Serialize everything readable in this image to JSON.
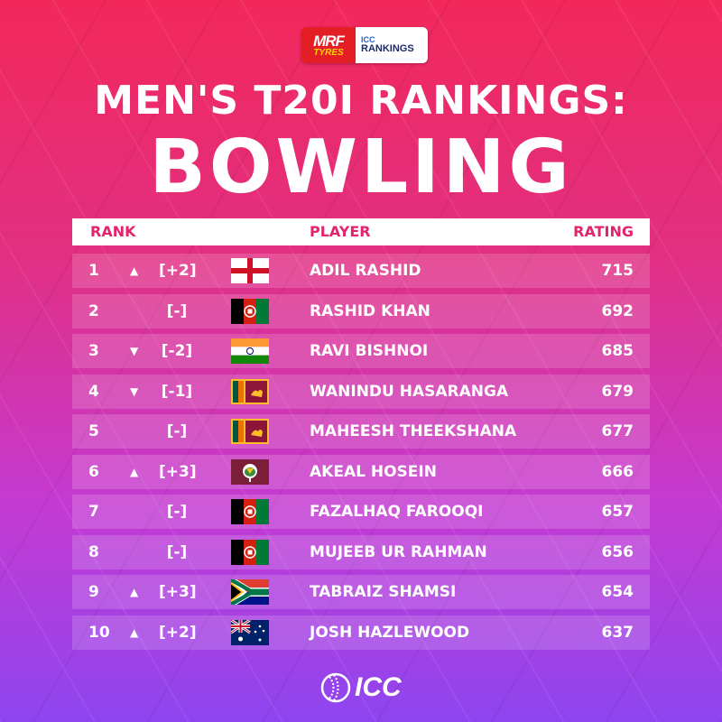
{
  "header": {
    "logo_mrf_top": "MRF",
    "logo_mrf_bottom": "TYRES",
    "logo_icc_top": "ICC",
    "logo_icc_bottom": "RANKINGS",
    "title_line1": "MEN'S T20I RANKINGS:",
    "title_line2": "BOWLING"
  },
  "table": {
    "columns": {
      "rank": "RANK",
      "player": "PLAYER",
      "rating": "RATING"
    },
    "rows": [
      {
        "rank": "1",
        "trend": "up",
        "arrow": "▲",
        "movement": "[+2]",
        "flag": "england-flag-icon",
        "player": "ADIL RASHID",
        "rating": "715"
      },
      {
        "rank": "2",
        "trend": "none",
        "arrow": "",
        "movement": "[-]",
        "flag": "afghanistan-flag-icon",
        "player": "RASHID KHAN",
        "rating": "692"
      },
      {
        "rank": "3",
        "trend": "down",
        "arrow": "▼",
        "movement": "[-2]",
        "flag": "india-flag-icon",
        "player": "RAVI BISHNOI",
        "rating": "685"
      },
      {
        "rank": "4",
        "trend": "down",
        "arrow": "▼",
        "movement": "[-1]",
        "flag": "sri-lanka-flag-icon",
        "player": "WANINDU HASARANGA",
        "rating": "679"
      },
      {
        "rank": "5",
        "trend": "none",
        "arrow": "",
        "movement": "[-]",
        "flag": "sri-lanka-flag-icon",
        "player": "MAHEESH THEEKSHANA",
        "rating": "677"
      },
      {
        "rank": "6",
        "trend": "up",
        "arrow": "▲",
        "movement": "[+3]",
        "flag": "west-indies-flag-icon",
        "player": "AKEAL HOSEIN",
        "rating": "666"
      },
      {
        "rank": "7",
        "trend": "none",
        "arrow": "",
        "movement": "[-]",
        "flag": "afghanistan-flag-icon",
        "player": "FAZALHAQ FAROOQI",
        "rating": "657"
      },
      {
        "rank": "8",
        "trend": "none",
        "arrow": "",
        "movement": "[-]",
        "flag": "afghanistan-flag-icon",
        "player": "MUJEEB UR RAHMAN",
        "rating": "656"
      },
      {
        "rank": "9",
        "trend": "up",
        "arrow": "▲",
        "movement": "[+3]",
        "flag": "south-africa-flag-icon",
        "player": "TABRAIZ SHAMSI",
        "rating": "654"
      },
      {
        "rank": "10",
        "trend": "up",
        "arrow": "▲",
        "movement": "[+2]",
        "flag": "australia-flag-icon",
        "player": "JOSH HAZLEWOOD",
        "rating": "637"
      }
    ]
  },
  "footer": {
    "logo_text": "ICC"
  },
  "colors": {
    "accent": "#e0246e",
    "gradient_top": "#f2285a",
    "gradient_bottom": "#8e45f0"
  }
}
